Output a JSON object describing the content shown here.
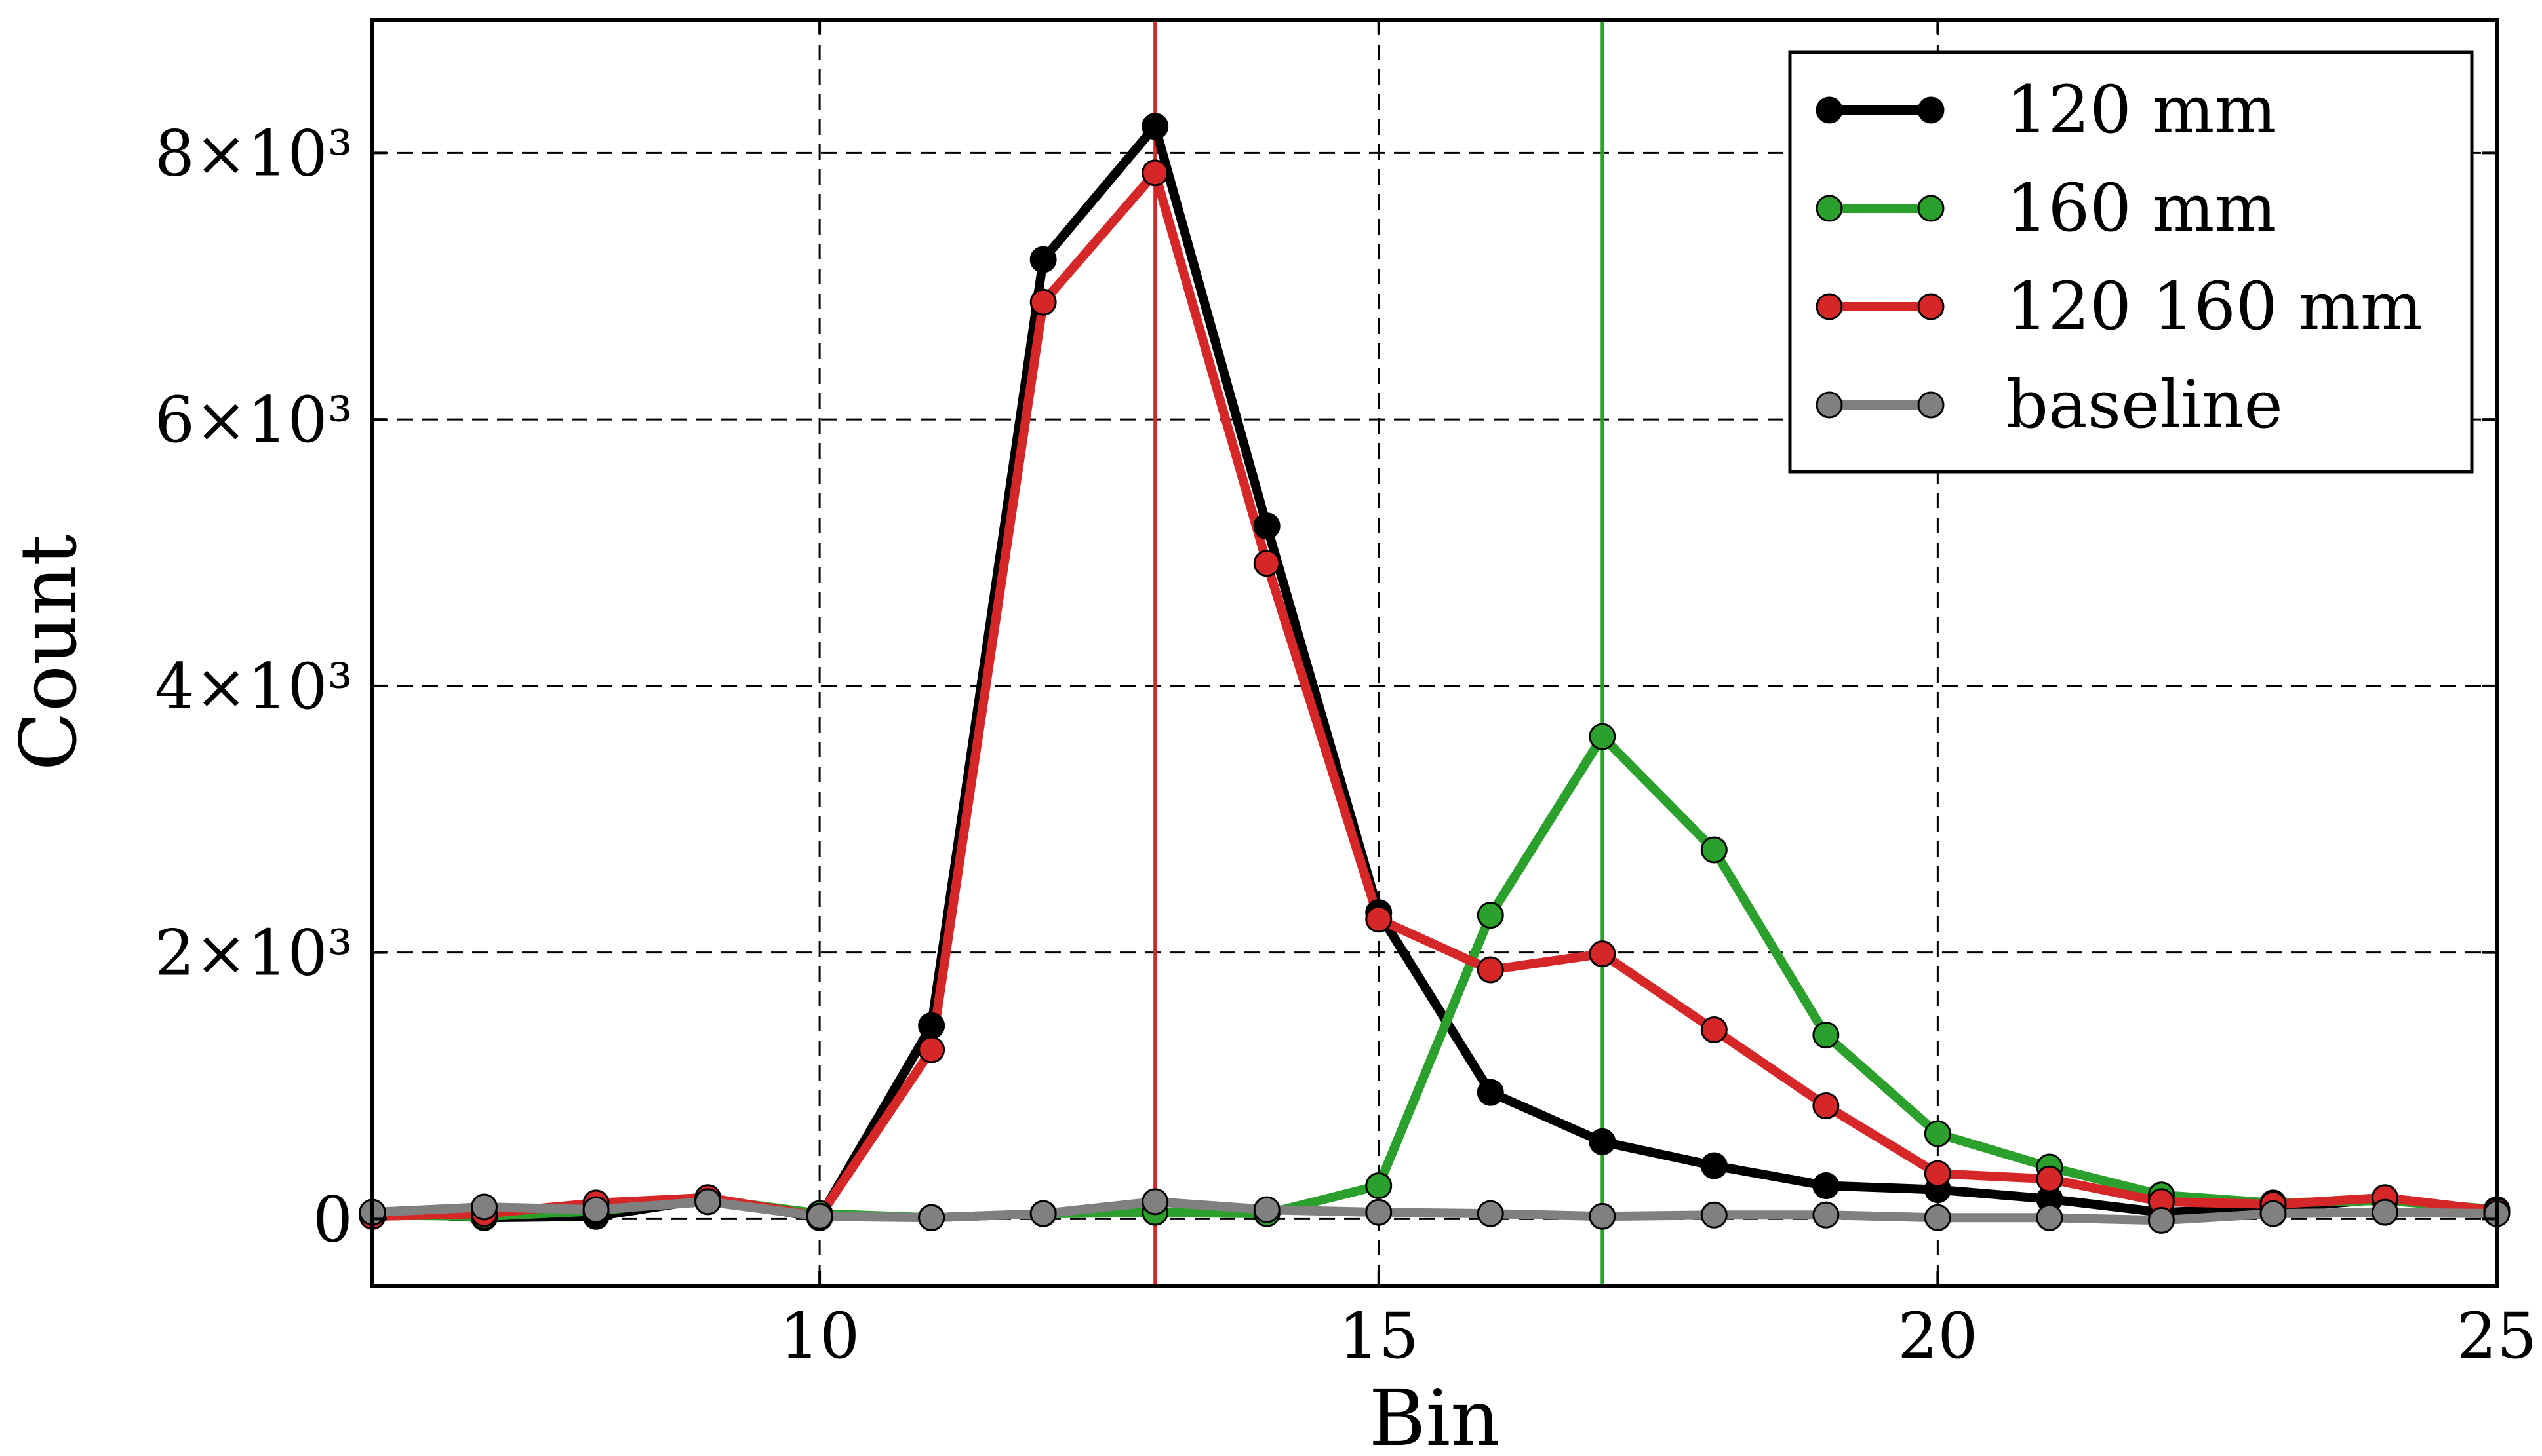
{
  "chart_data": {
    "type": "line",
    "xlabel": "Bin",
    "ylabel": "Count",
    "xlim": [
      6,
      25
    ],
    "ylim": [
      -500,
      9000
    ],
    "xticks": [
      10,
      15,
      20,
      25
    ],
    "yticks": [
      {
        "value": 0,
        "label": "0"
      },
      {
        "value": 2000,
        "label": "2×10³"
      },
      {
        "value": 4000,
        "label": "4×10³"
      },
      {
        "value": 6000,
        "label": "6×10³"
      },
      {
        "value": 8000,
        "label": "8×10³"
      }
    ],
    "grid": true,
    "legend_position": "top-right",
    "vlines": [
      {
        "x": 13,
        "color": "#d62728"
      },
      {
        "x": 17,
        "color": "#2ca02c"
      }
    ],
    "x": [
      6,
      7,
      8,
      9,
      10,
      11,
      12,
      13,
      14,
      15,
      16,
      17,
      18,
      19,
      20,
      21,
      22,
      23,
      24,
      25
    ],
    "series": [
      {
        "name": "120 mm",
        "color": "#000000",
        "values": [
          50,
          10,
          20,
          150,
          10,
          1450,
          7200,
          8200,
          5200,
          2300,
          950,
          580,
          400,
          250,
          220,
          150,
          50,
          80,
          150,
          50
        ]
      },
      {
        "name": "160 mm",
        "color": "#2ca02c",
        "values": [
          30,
          20,
          60,
          150,
          40,
          10,
          40,
          50,
          40,
          250,
          2280,
          3620,
          2770,
          1380,
          640,
          390,
          180,
          120,
          140,
          70
        ]
      },
      {
        "name": "120 160 mm",
        "color": "#d62728",
        "values": [
          20,
          40,
          120,
          160,
          20,
          1270,
          6880,
          7850,
          4920,
          2250,
          1870,
          1990,
          1420,
          850,
          340,
          300,
          130,
          110,
          160,
          60
        ]
      },
      {
        "name": "baseline",
        "color": "#808080",
        "values": [
          50,
          90,
          70,
          130,
          20,
          10,
          40,
          130,
          70,
          50,
          40,
          20,
          30,
          30,
          10,
          10,
          -10,
          40,
          50,
          40
        ]
      }
    ]
  }
}
